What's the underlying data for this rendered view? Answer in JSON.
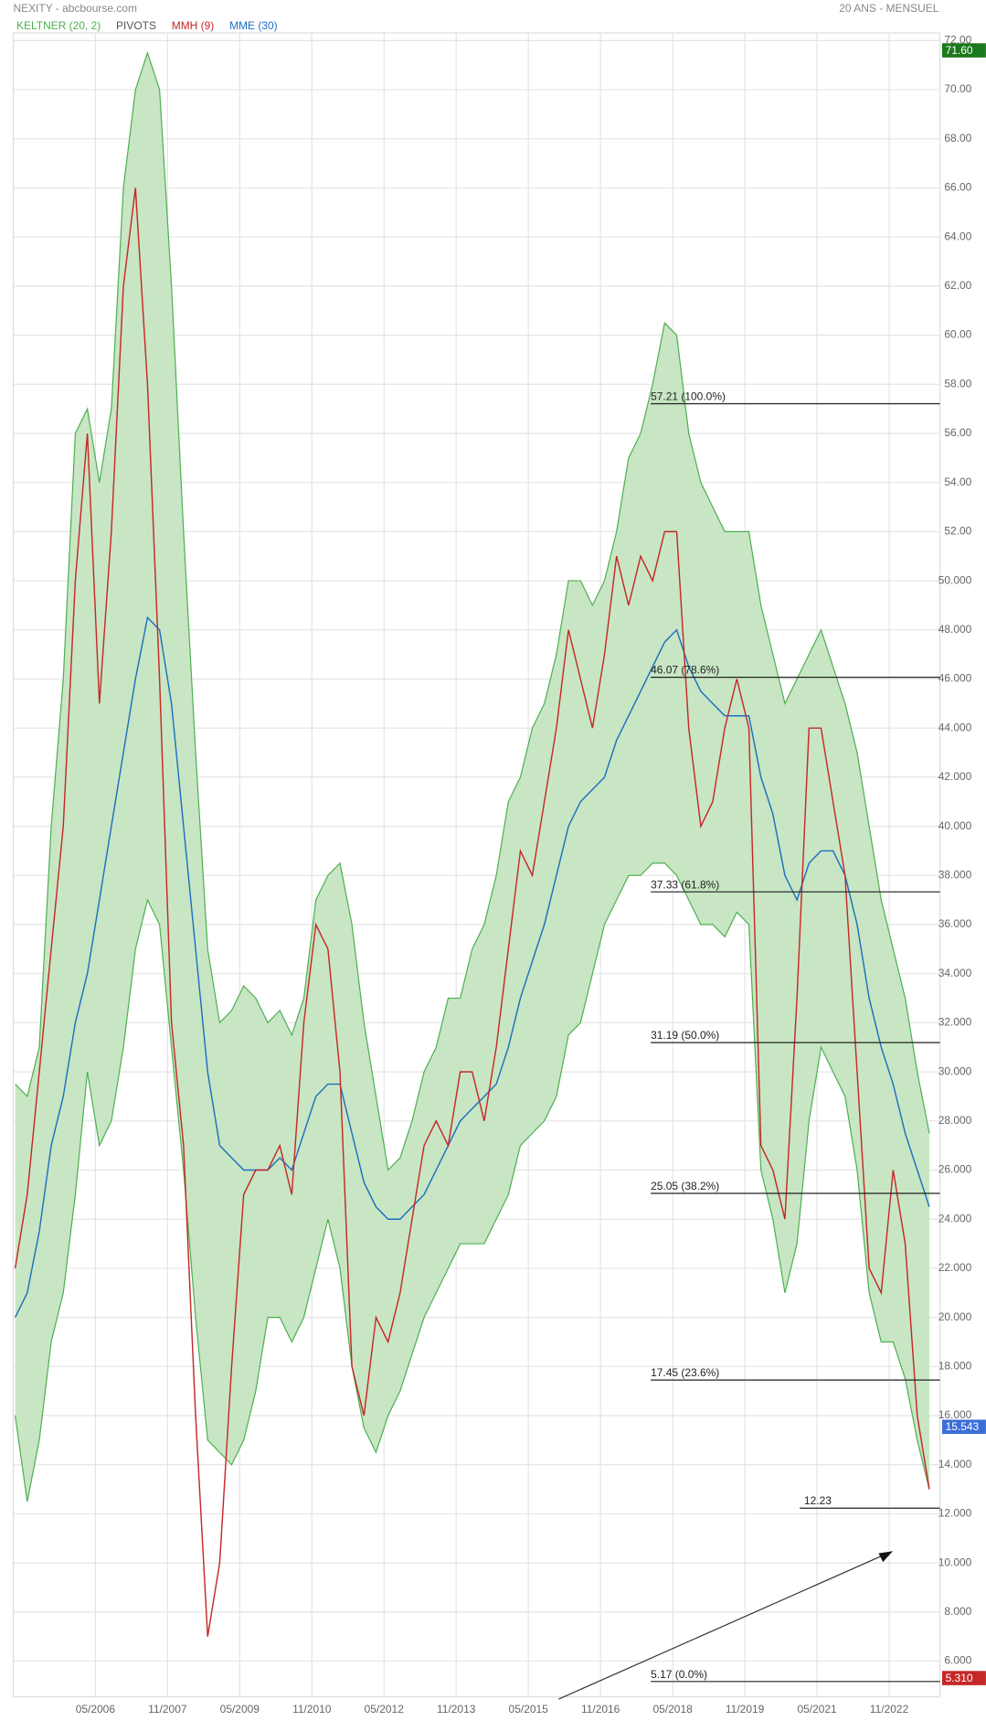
{
  "chart_data": {
    "type": "line",
    "title": "NEXITY - abcbourse.com",
    "subtitle": "20 ANS - MENSUEL",
    "x": [
      "09/2004",
      "12/2004",
      "03/2005",
      "06/2005",
      "09/2005",
      "12/2005",
      "03/2006",
      "06/2006",
      "09/2006",
      "12/2006",
      "03/2007",
      "06/2007",
      "09/2007",
      "12/2007",
      "03/2008",
      "06/2008",
      "09/2008",
      "12/2008",
      "03/2009",
      "06/2009",
      "09/2009",
      "12/2009",
      "03/2010",
      "06/2010",
      "09/2010",
      "12/2010",
      "03/2011",
      "06/2011",
      "09/2011",
      "12/2011",
      "03/2012",
      "06/2012",
      "09/2012",
      "12/2012",
      "03/2013",
      "06/2013",
      "09/2013",
      "12/2013",
      "03/2014",
      "06/2014",
      "09/2014",
      "12/2014",
      "03/2015",
      "06/2015",
      "09/2015",
      "12/2015",
      "03/2016",
      "06/2016",
      "09/2016",
      "12/2016",
      "03/2017",
      "06/2017",
      "09/2017",
      "12/2017",
      "03/2018",
      "06/2018",
      "09/2018",
      "12/2018",
      "03/2019",
      "06/2019",
      "09/2019",
      "12/2019",
      "03/2020",
      "06/2020",
      "09/2020",
      "12/2020",
      "03/2021",
      "06/2021",
      "09/2021",
      "12/2021",
      "03/2022",
      "06/2022",
      "09/2022",
      "12/2022",
      "03/2023",
      "06/2023",
      "09/2023"
    ],
    "series": [
      {
        "name": "KELTNER (20, 2)",
        "color": "#4caf50",
        "fill": "#c8e6c3",
        "values": [
          29.5,
          29,
          31,
          40,
          46,
          56,
          57,
          54,
          57,
          66,
          70,
          71.5,
          70,
          62,
          52,
          43,
          35,
          32,
          32.5,
          33.5,
          33,
          32,
          32.5,
          31.5,
          33,
          37,
          38,
          38.5,
          36,
          32,
          29,
          26,
          26.5,
          28,
          30,
          31,
          33,
          33,
          35,
          36,
          38,
          41,
          42,
          44,
          45,
          47,
          50,
          50,
          49,
          50,
          52,
          55,
          56,
          58,
          60.5,
          60,
          56,
          54,
          53,
          52,
          52,
          52,
          49,
          47,
          45,
          46,
          47,
          48,
          46.5,
          45,
          43,
          40,
          37,
          35,
          33,
          30,
          27.5
        ],
        "lower": [
          16,
          12.5,
          15,
          19,
          21,
          25,
          30,
          27,
          28,
          31,
          35,
          37,
          36,
          31,
          26,
          20,
          15,
          14.5,
          14,
          15,
          17,
          20,
          20,
          19,
          20,
          22,
          24,
          22,
          18,
          15.5,
          14.5,
          16,
          17,
          18.5,
          20,
          21,
          22,
          23,
          23,
          23,
          24,
          25,
          27,
          27.5,
          28,
          29,
          31.5,
          32,
          34,
          36,
          37,
          38,
          38,
          38.5,
          38.5,
          38,
          37,
          36,
          36,
          35.5,
          36.5,
          36,
          26,
          24,
          21,
          23,
          28,
          31,
          30,
          29,
          26,
          21,
          19,
          19,
          17.5,
          15,
          13
        ]
      },
      {
        "name": "MMH (9)",
        "color": "#c62828",
        "values": [
          22,
          25,
          30,
          35,
          40,
          50,
          56,
          45,
          52,
          62,
          66,
          58,
          46,
          32,
          27,
          16,
          7,
          10,
          18,
          25,
          26,
          26,
          27,
          25,
          32,
          36,
          35,
          30,
          18,
          16,
          20,
          19,
          21,
          24,
          27,
          28,
          27,
          30,
          30,
          28,
          31,
          35,
          39,
          38,
          41,
          44,
          48,
          46,
          44,
          47,
          51,
          49,
          51,
          50,
          52,
          52,
          44,
          40,
          41,
          44,
          46,
          44,
          27,
          26,
          24,
          33,
          44,
          44,
          41,
          38,
          30,
          22,
          21,
          26,
          23,
          16,
          13
        ]
      },
      {
        "name": "MME (30)",
        "color": "#1e6fc2",
        "values": [
          20,
          21,
          23.5,
          27,
          29,
          32,
          34,
          37,
          40,
          43,
          46,
          48.5,
          48,
          45,
          40,
          35,
          30,
          27,
          26.5,
          26,
          26,
          26,
          26.5,
          26,
          27.5,
          29,
          29.5,
          29.5,
          27.5,
          25.5,
          24.5,
          24,
          24,
          24.5,
          25,
          26,
          27,
          28,
          28.5,
          29,
          29.5,
          31,
          33,
          34.5,
          36,
          38,
          40,
          41,
          41.5,
          42,
          43.5,
          44.5,
          45.5,
          46.5,
          47.5,
          48,
          46.5,
          45.5,
          45,
          44.5,
          44.5,
          44.5,
          42,
          40.5,
          38,
          37,
          38.5,
          39,
          39,
          38,
          36,
          33,
          31,
          29.5,
          27.5,
          26,
          24.5
        ]
      }
    ],
    "pivots": {
      "name": "PIVOTS",
      "color": "#555555"
    },
    "xticks": [
      "05/2006",
      "11/2007",
      "05/2009",
      "11/2010",
      "05/2012",
      "11/2013",
      "05/2015",
      "11/2016",
      "05/2018",
      "11/2019",
      "05/2021",
      "11/2022"
    ],
    "ylim": [
      5,
      73
    ],
    "yticks": [
      {
        "value": 72,
        "label": "72.00"
      },
      {
        "value": 70,
        "label": "70.00"
      },
      {
        "value": 68,
        "label": "68.00"
      },
      {
        "value": 66,
        "label": "66.00"
      },
      {
        "value": 64,
        "label": "64.00"
      },
      {
        "value": 62,
        "label": "62.00"
      },
      {
        "value": 60,
        "label": "60.00"
      },
      {
        "value": 58,
        "label": "58.00"
      },
      {
        "value": 56,
        "label": "56.00"
      },
      {
        "value": 54,
        "label": "54.00"
      },
      {
        "value": 52,
        "label": "52.00"
      },
      {
        "value": 50,
        "label": "50.000"
      },
      {
        "value": 48,
        "label": "48.000"
      },
      {
        "value": 46,
        "label": "46.000"
      },
      {
        "value": 44,
        "label": "44.000"
      },
      {
        "value": 42,
        "label": "42.000"
      },
      {
        "value": 40,
        "label": "40.000"
      },
      {
        "value": 38,
        "label": "38.000"
      },
      {
        "value": 36,
        "label": "36.000"
      },
      {
        "value": 34,
        "label": "34.000"
      },
      {
        "value": 32,
        "label": "32.000"
      },
      {
        "value": 30,
        "label": "30.000"
      },
      {
        "value": 28,
        "label": "28.000"
      },
      {
        "value": 26,
        "label": "26.000"
      },
      {
        "value": 24,
        "label": "24.000"
      },
      {
        "value": 22,
        "label": "22.000"
      },
      {
        "value": 20,
        "label": "20.000"
      },
      {
        "value": 18,
        "label": "18.000"
      },
      {
        "value": 16,
        "label": "16.000"
      },
      {
        "value": 14,
        "label": "14.000"
      },
      {
        "value": 12,
        "label": "12.000"
      },
      {
        "value": 10,
        "label": "10.000"
      },
      {
        "value": 8,
        "label": "8.000"
      },
      {
        "value": 6,
        "label": "6.000"
      }
    ],
    "grid": true,
    "levels": [
      {
        "value": 57.21,
        "label": "57.21  (100.0%)"
      },
      {
        "value": 46.07,
        "label": "46.07  (78.6%)"
      },
      {
        "value": 37.33,
        "label": "37.33  (61.8%)"
      },
      {
        "value": 31.19,
        "label": "31.19  (50.0%)"
      },
      {
        "value": 25.05,
        "label": "25.05  (38.2%)"
      },
      {
        "value": 17.45,
        "label": "17.45  (23.6%)"
      },
      {
        "value": 5.17,
        "label": "5.17  (0.0%)"
      }
    ],
    "support": {
      "value": 12.23,
      "label": "12.23"
    },
    "price_tags": [
      {
        "value": 71.6,
        "label": "71.60",
        "color": "#1b7a1b"
      },
      {
        "value": 15.543,
        "label": "15.543",
        "color": "#3b6fd8"
      },
      {
        "value": 5.31,
        "label": "5.310",
        "color": "#c62828"
      }
    ]
  }
}
